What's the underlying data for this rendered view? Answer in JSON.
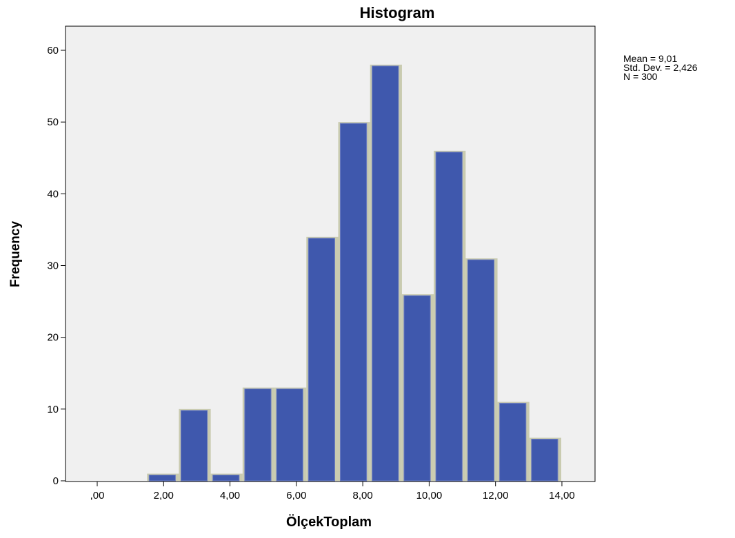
{
  "chart_data": {
    "type": "bar",
    "title": "Histogram",
    "xlabel": "ÖlçekToplam",
    "ylabel": "Frequency",
    "bin_width": 0.96,
    "bins": [
      {
        "x_start": 1.5,
        "x_end": 2.46,
        "value": 1
      },
      {
        "x_start": 2.46,
        "x_end": 3.42,
        "value": 10
      },
      {
        "x_start": 3.42,
        "x_end": 4.38,
        "value": 1
      },
      {
        "x_start": 4.38,
        "x_end": 5.34,
        "value": 13
      },
      {
        "x_start": 5.34,
        "x_end": 6.3,
        "value": 13
      },
      {
        "x_start": 6.3,
        "x_end": 7.26,
        "value": 34
      },
      {
        "x_start": 7.26,
        "x_end": 8.22,
        "value": 50
      },
      {
        "x_start": 8.22,
        "x_end": 9.18,
        "value": 58
      },
      {
        "x_start": 9.18,
        "x_end": 10.14,
        "value": 26
      },
      {
        "x_start": 10.14,
        "x_end": 11.1,
        "value": 46
      },
      {
        "x_start": 11.1,
        "x_end": 12.06,
        "value": 31
      },
      {
        "x_start": 12.06,
        "x_end": 13.02,
        "value": 11
      },
      {
        "x_start": 13.02,
        "x_end": 13.98,
        "value": 6
      }
    ],
    "x_ticks": [
      {
        "value": 0,
        "label": ",00"
      },
      {
        "value": 2,
        "label": "2,00"
      },
      {
        "value": 4,
        "label": "4,00"
      },
      {
        "value": 6,
        "label": "6,00"
      },
      {
        "value": 8,
        "label": "8,00"
      },
      {
        "value": 10,
        "label": "10,00"
      },
      {
        "value": 12,
        "label": "12,00"
      },
      {
        "value": 14,
        "label": "14,00"
      }
    ],
    "y_ticks": [
      {
        "value": 0,
        "label": "0"
      },
      {
        "value": 10,
        "label": "10"
      },
      {
        "value": 20,
        "label": "20"
      },
      {
        "value": 30,
        "label": "30"
      },
      {
        "value": 40,
        "label": "40"
      },
      {
        "value": 50,
        "label": "50"
      },
      {
        "value": 60,
        "label": "60"
      }
    ],
    "xlim": [
      -0.6,
      15.6
    ],
    "ylim": [
      0,
      63
    ],
    "grid": false,
    "legend": "none",
    "stats": [
      "Mean = 9,01",
      "Std. Dev. = 2,426",
      "N = 300"
    ],
    "colors": {
      "bar_fill": "#3f58ad",
      "bar_edge": "#c9cbb0",
      "plot_bg": "#f0f0f0",
      "axis": "#000000"
    }
  }
}
